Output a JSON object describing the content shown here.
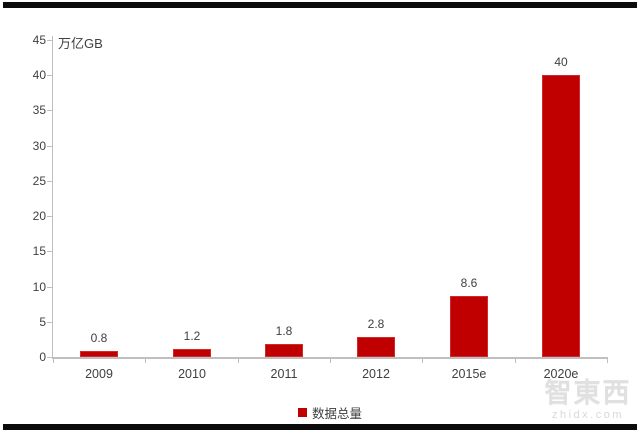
{
  "chart_data": {
    "type": "bar",
    "title": "",
    "unit_label": "万亿GB",
    "categories": [
      "2009",
      "2010",
      "2011",
      "2012",
      "2015e",
      "2020e"
    ],
    "values": [
      0.8,
      1.2,
      1.8,
      2.8,
      8.6,
      40
    ],
    "value_labels": [
      "0.8",
      "1.2",
      "1.8",
      "2.8",
      "8.6",
      "40"
    ],
    "series": [
      {
        "name": "数据总量",
        "values": [
          0.8,
          1.2,
          1.8,
          2.8,
          8.6,
          40
        ]
      }
    ],
    "xlabel": "",
    "ylabel": "万亿GB",
    "ylim": [
      0,
      45
    ],
    "yticks": [
      0,
      5,
      10,
      15,
      20,
      25,
      30,
      35,
      40,
      45
    ],
    "grid": false,
    "legend_position": "bottom",
    "bar_color": "#c00000",
    "axis_color": "#bfbfbf",
    "text_color": "#404040"
  },
  "legend": {
    "label": "数据总量"
  },
  "watermark": {
    "logo_text": "智東西",
    "site_text": "zhidx.com"
  }
}
